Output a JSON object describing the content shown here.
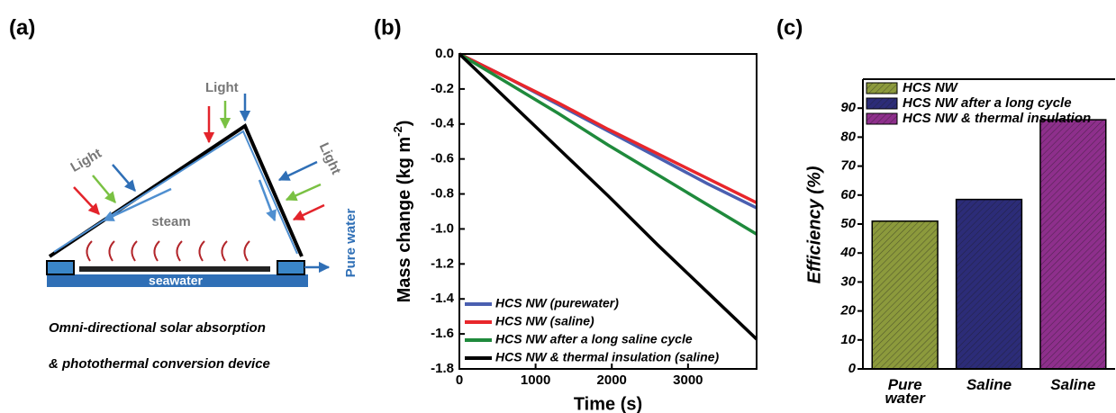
{
  "panel_labels": [
    "(a)",
    "(b)",
    "(c)"
  ],
  "diagram": {
    "light_labels": [
      "Light",
      "Light",
      "Light"
    ],
    "steam": "steam",
    "seawater": "seawater",
    "outlet": "Pure water",
    "caption": [
      "Omni-directional solar absorption",
      "& photothermal conversion device"
    ]
  },
  "chart_data": [
    {
      "type": "line",
      "xlabel": "Time (s)",
      "ylabel": [
        "Mass change (kg m",
        "-2",
        ")"
      ],
      "x": [
        0,
        650,
        1300,
        1950,
        2600,
        3250,
        3900
      ],
      "xlim": [
        0,
        3900
      ],
      "xticks": [
        0,
        1000,
        2000,
        3000
      ],
      "ylim": [
        -1.8,
        0
      ],
      "yticks": [
        -1.8,
        -1.6,
        -1.4,
        -1.2,
        {
          "value": -1.0,
          "label": "-1.0"
        },
        -0.8,
        -0.6,
        -0.4,
        -0.2,
        {
          "value": 0,
          "label": "0.0"
        }
      ],
      "legend": "lower left",
      "series": [
        {
          "name": "HCS NW (purewater)",
          "color": "#4a5fb0",
          "values": [
            0,
            -0.14,
            -0.29,
            -0.44,
            -0.59,
            -0.74,
            -0.88
          ]
        },
        {
          "name": "HCS NW (saline)",
          "color": "#e8262b",
          "values": [
            0,
            -0.14,
            -0.28,
            -0.43,
            -0.57,
            -0.71,
            -0.85
          ]
        },
        {
          "name": "HCS NW after a long saline cycle",
          "color": "#1f8a3c",
          "values": [
            0,
            -0.17,
            -0.34,
            -0.52,
            -0.69,
            -0.86,
            -1.03
          ]
        },
        {
          "name": "HCS NW & thermal insulation (saline)",
          "color": "#000000",
          "values": [
            0,
            -0.27,
            -0.54,
            -0.81,
            -1.09,
            -1.36,
            -1.63
          ]
        }
      ]
    },
    {
      "type": "bar",
      "ylabel": "Efficiency (%)",
      "categories": [
        "Pure water",
        "Saline",
        "Saline"
      ],
      "ylim": [
        0,
        100
      ],
      "yticks": [
        0,
        10,
        20,
        30,
        40,
        50,
        60,
        70,
        80,
        90
      ],
      "legend": "upper left",
      "series": [
        {
          "name": "HCS NW",
          "color": "#8c9a3c",
          "values": [
            51,
            null,
            null
          ]
        },
        {
          "name": "HCS NW after a long cycle",
          "color": "#2c2c78",
          "values": [
            null,
            58.5,
            null
          ]
        },
        {
          "name": "HCS NW & thermal insulation",
          "color": "#8e2f8c",
          "values": [
            null,
            null,
            86
          ]
        }
      ]
    }
  ]
}
